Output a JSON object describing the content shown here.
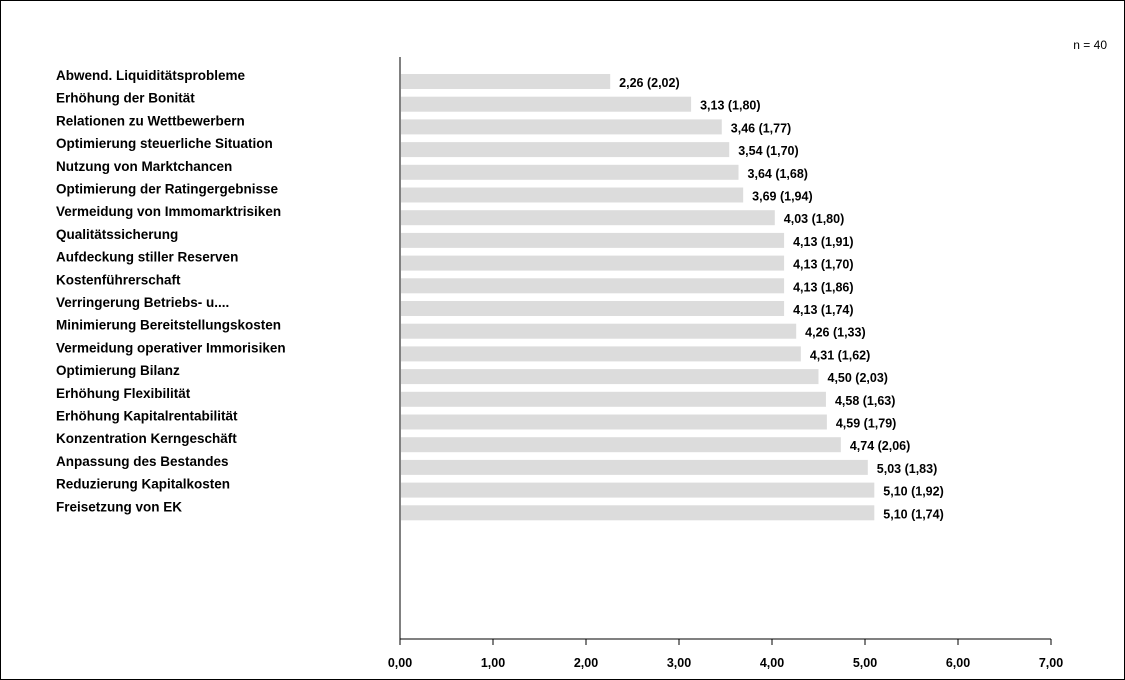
{
  "colors": {
    "bar": "#dcdcdc",
    "axis": "#000000",
    "text": "#000000",
    "background": "#ffffff"
  },
  "chart_data": {
    "type": "bar",
    "orientation": "horizontal",
    "sample_note": "n = 40",
    "categories": [
      "Abwend. Liquiditätsprobleme",
      "Erhöhung der Bonität",
      "Relationen zu Wettbewerbern",
      "Optimierung steuerliche Situation",
      "Nutzung von Marktchancen",
      "Optimierung der Ratingergebnisse",
      "Vermeidung von Immomarktrisiken",
      "Qualitätssicherung",
      "Aufdeckung stiller Reserven",
      "Kostenführerschaft",
      "Verringerung Betriebs- u....",
      "Minimierung Bereitstellungskosten",
      "Vermeidung operativer Immorisiken",
      "Optimierung Bilanz",
      "Erhöhung Flexibilität",
      "Erhöhung Kapitalrentabilität",
      "Konzentration Kerngeschäft",
      "Anpassung des Bestandes",
      "Reduzierung Kapitalkosten",
      "Freisetzung von EK"
    ],
    "values": [
      2.26,
      3.13,
      3.46,
      3.54,
      3.64,
      3.69,
      4.03,
      4.13,
      4.13,
      4.13,
      4.13,
      4.26,
      4.31,
      4.5,
      4.58,
      4.59,
      4.74,
      5.03,
      5.1,
      5.1
    ],
    "std_dev": [
      2.02,
      1.8,
      1.77,
      1.7,
      1.68,
      1.94,
      1.8,
      1.91,
      1.7,
      1.86,
      1.74,
      1.33,
      1.62,
      2.03,
      1.63,
      1.79,
      2.06,
      1.83,
      1.92,
      1.74
    ],
    "data_labels": [
      "2,26 (2,02)",
      "3,13 (1,80)",
      "3,46 (1,77)",
      "3,54 (1,70)",
      "3,64 (1,68)",
      "3,69 (1,94)",
      "4,03 (1,80)",
      "4,13 (1,91)",
      "4,13 (1,70)",
      "4,13 (1,86)",
      "4,13 (1,74)",
      "4,26 (1,33)",
      "4,31 (1,62)",
      "4,50 (2,03)",
      "4,58 (1,63)",
      "4,59 (1,79)",
      "4,74 (2,06)",
      "5,03 (1,83)",
      "5,10 (1,92)",
      "5,10 (1,74)"
    ],
    "xlim": [
      0,
      7
    ],
    "ticks": [
      0,
      1,
      2,
      3,
      4,
      5,
      6,
      7
    ],
    "tick_labels": [
      "0,00",
      "1,00",
      "2,00",
      "3,00",
      "4,00",
      "5,00",
      "6,00",
      "7,00"
    ],
    "grid": false,
    "legend": "none"
  }
}
